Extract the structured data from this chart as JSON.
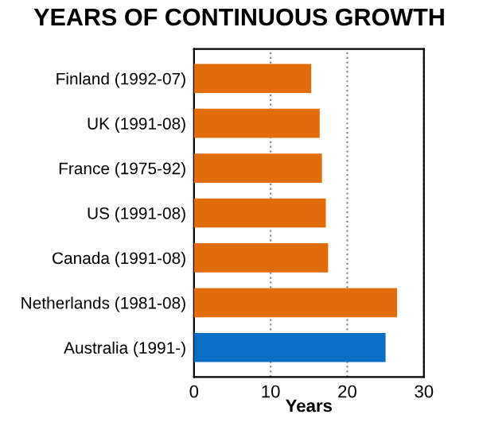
{
  "chart_data": {
    "type": "bar",
    "orientation": "horizontal",
    "title": "YEARS OF CONTINUOUS GROWTH",
    "xlabel": "Years",
    "categories": [
      "Finland (1992-07)",
      "UK (1991-08)",
      "France (1975-92)",
      "US (1991-08)",
      "Canada (1991-08)",
      "Netherlands (1981-08)",
      "Australia (1991-)"
    ],
    "values": [
      15.3,
      16.4,
      16.7,
      17.2,
      17.5,
      26.5,
      25.0
    ],
    "colors": [
      "#e36c0a",
      "#e36c0a",
      "#e36c0a",
      "#e36c0a",
      "#e36c0a",
      "#e36c0a",
      "#0a6fc2"
    ],
    "xlim": [
      0,
      30
    ],
    "xticks": [
      0,
      10,
      20,
      30
    ],
    "grid": "x"
  }
}
